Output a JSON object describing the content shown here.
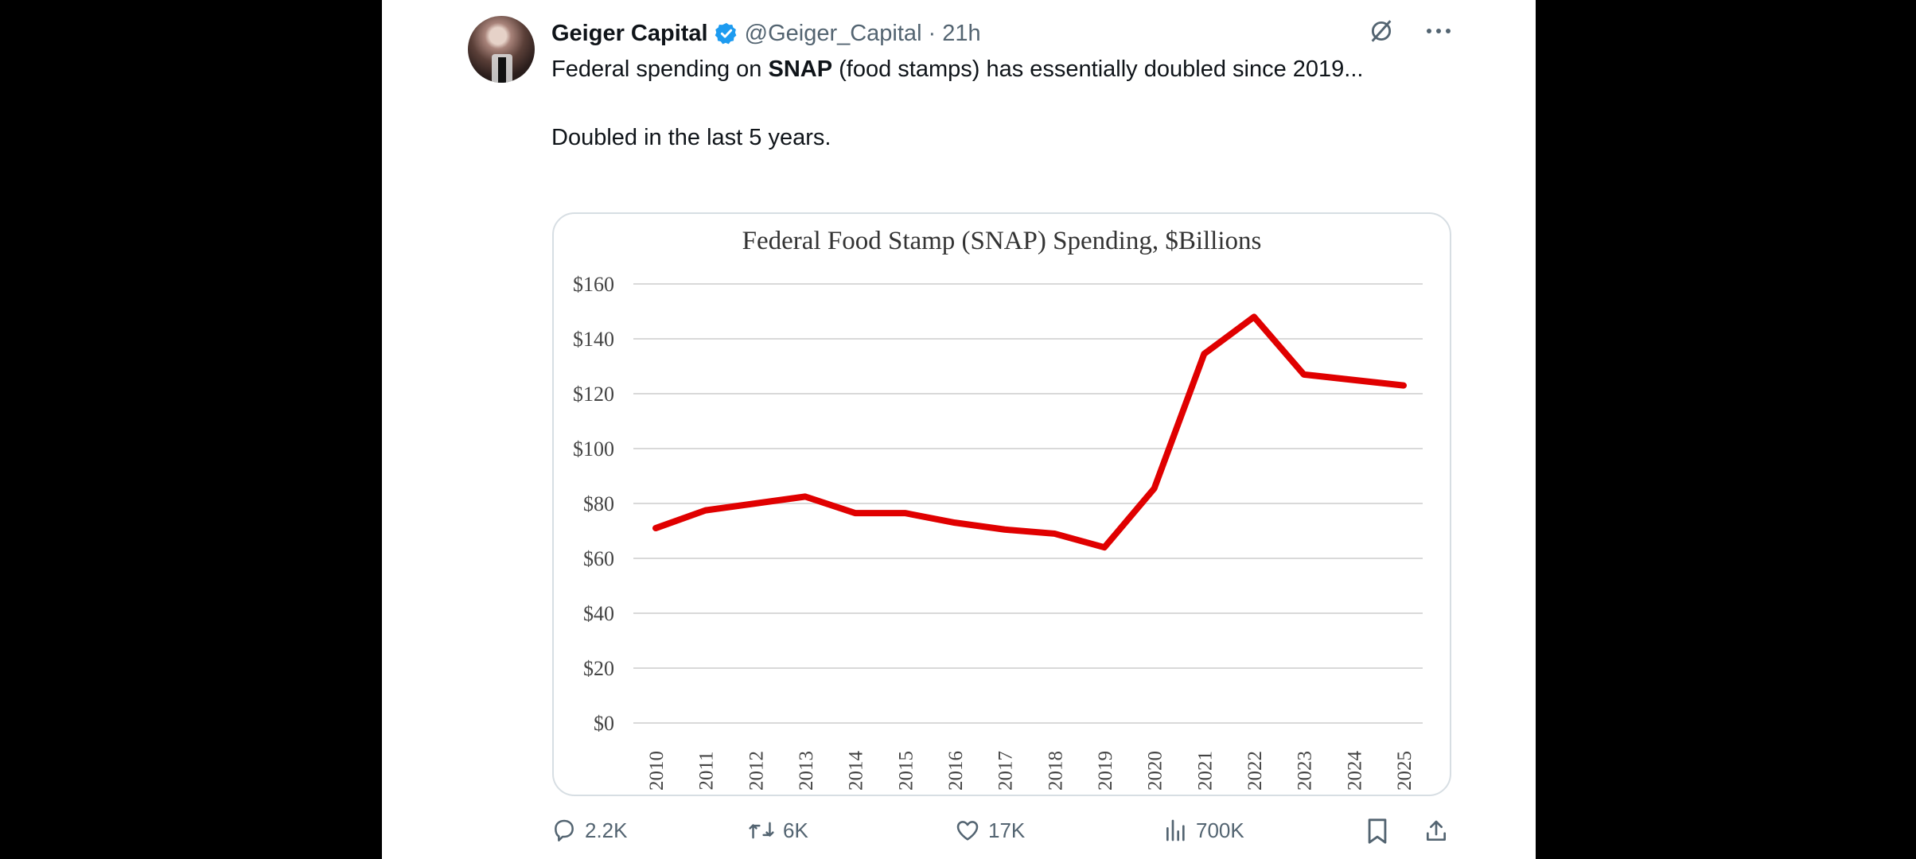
{
  "tweet": {
    "author": {
      "display_name": "Geiger Capital",
      "verified": true,
      "handle": "@Geiger_Capital",
      "separator": "·",
      "timestamp": "21h",
      "avatar_icon": "profile-photo"
    },
    "top_icons": [
      "grok-icon",
      "more-icon"
    ],
    "text": {
      "line1_prefix": "Federal spending on ",
      "line1_bold": "SNAP",
      "line1_suffix": " (food stamps) has essentially doubled since 2019...",
      "line2": "Doubled in the last 5 years."
    },
    "actions": {
      "replies": "2.2K",
      "reposts": "6K",
      "likes": "17K",
      "views": "700K"
    }
  },
  "colors": {
    "line": "#e00000",
    "verified": "#1d9bf0",
    "muted": "#536471",
    "text": "#0f1419"
  },
  "chart_data": {
    "type": "line",
    "title": "Federal Food Stamp (SNAP) Spending, $Billions",
    "xlabel": "",
    "ylabel": "",
    "x": [
      "2010",
      "2011",
      "2012",
      "2013",
      "2014",
      "2015",
      "2016",
      "2017",
      "2018",
      "2019",
      "2020",
      "2021",
      "2022",
      "2023",
      "2024",
      "2025"
    ],
    "series": [
      {
        "name": "SNAP Spending",
        "values": [
          71,
          77.5,
          80,
          82.5,
          76.5,
          76.5,
          73,
          70.5,
          69,
          64,
          85.5,
          134.5,
          148,
          127,
          125,
          123
        ]
      }
    ],
    "ylim": [
      0,
      160
    ],
    "yticks": [
      0,
      20,
      40,
      60,
      80,
      100,
      120,
      140,
      160
    ],
    "ytick_labels": [
      "$0",
      "$20",
      "$40",
      "$60",
      "$80",
      "$100",
      "$120",
      "$140",
      "$160"
    ],
    "grid": true,
    "legend": "none"
  }
}
